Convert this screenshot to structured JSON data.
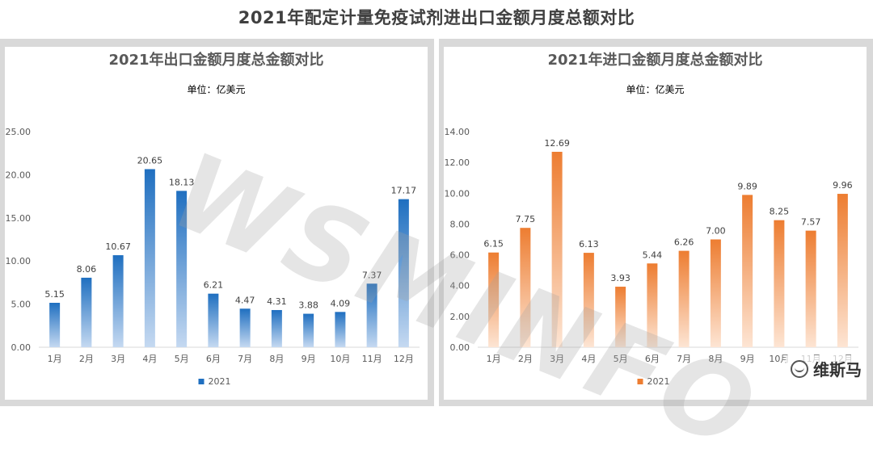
{
  "page": {
    "title": "2021年配定计量免疫试剂进出口金额月度总额对比"
  },
  "brand": {
    "name": "维斯马",
    "icon": "wechat-icon"
  },
  "watermark": "WSMINFO",
  "chart_data": [
    {
      "type": "bar",
      "title": "2021年出口金额月度总金额对比",
      "subtitle": "单位：亿美元",
      "categories": [
        "1月",
        "2月",
        "3月",
        "4月",
        "5月",
        "6月",
        "7月",
        "8月",
        "9月",
        "10月",
        "11月",
        "12月"
      ],
      "series": [
        {
          "name": "2021",
          "values": [
            5.15,
            8.06,
            10.67,
            20.65,
            18.13,
            6.21,
            4.47,
            4.31,
            3.88,
            4.09,
            7.37,
            17.17
          ]
        }
      ],
      "value_labels": [
        "5.15",
        "8.06",
        "10.67",
        "20.65",
        "18.13",
        "6.21",
        "4.47",
        "4.31",
        "3.88",
        "4.09",
        "7.37",
        "17.17"
      ],
      "ylim": [
        0,
        25
      ],
      "yticks": [
        "0.00",
        "5.00",
        "10.00",
        "15.00",
        "20.00",
        "25.00"
      ],
      "ytick_values": [
        0,
        5,
        10,
        15,
        20,
        25
      ],
      "grid": false,
      "legend": "bottom",
      "colors": {
        "top": "#1f6fc0",
        "bottom": "#c5d9f1"
      }
    },
    {
      "type": "bar",
      "title": "2021年进口金额月度总金额对比",
      "subtitle": "单位：亿美元",
      "categories": [
        "1月",
        "2月",
        "3月",
        "4月",
        "5月",
        "6月",
        "7月",
        "8月",
        "9月",
        "10月",
        "11月",
        "12月"
      ],
      "series": [
        {
          "name": "2021",
          "values": [
            6.15,
            7.75,
            12.69,
            6.13,
            3.93,
            5.44,
            6.26,
            7.0,
            9.89,
            8.25,
            7.57,
            9.96
          ]
        }
      ],
      "value_labels": [
        "6.15",
        "7.75",
        "12.69",
        "6.13",
        "3.93",
        "5.44",
        "6.26",
        "7.00",
        "9.89",
        "8.25",
        "7.57",
        "9.96"
      ],
      "ylim": [
        0,
        14
      ],
      "yticks": [
        "0.00",
        "2.00",
        "4.00",
        "6.00",
        "8.00",
        "10.00",
        "12.00",
        "14.00"
      ],
      "ytick_values": [
        0,
        2,
        4,
        6,
        8,
        10,
        12,
        14
      ],
      "grid": false,
      "legend": "bottom",
      "colors": {
        "top": "#ed7d31",
        "bottom": "#fde5d4"
      }
    }
  ]
}
